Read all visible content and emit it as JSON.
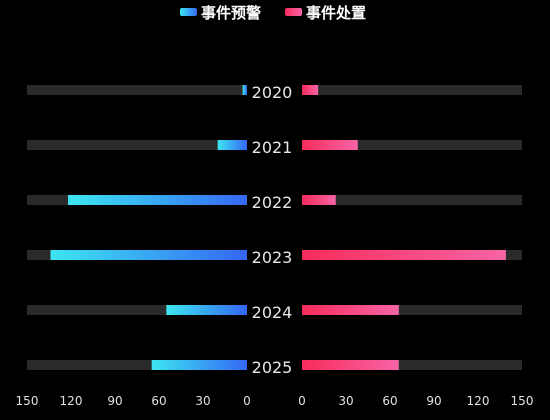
{
  "legend": {
    "warning_label": "事件预警",
    "disposal_label": "事件处置"
  },
  "colors": {
    "track": "#2a2a2a",
    "warning_gradient": [
      "#3467f5",
      "#3de6f0"
    ],
    "disposal_gradient": [
      "#f72c5b",
      "#f864a6"
    ],
    "legend_warning_gradient": [
      "#3de6f0",
      "#3467f5"
    ]
  },
  "chart_data": {
    "type": "bar",
    "orientation": "horizontal-butterfly",
    "categories": [
      "2020",
      "2021",
      "2022",
      "2023",
      "2024",
      "2025"
    ],
    "series": [
      {
        "name": "事件预警",
        "side": "left",
        "values": [
          3,
          20,
          122,
          134,
          55,
          65
        ]
      },
      {
        "name": "事件处置",
        "side": "right",
        "values": [
          11,
          38,
          23,
          139,
          66,
          66
        ]
      }
    ],
    "xlim": [
      0,
      150
    ],
    "left_ticks": [
      "150",
      "120",
      "90",
      "60",
      "30",
      "0"
    ],
    "right_ticks": [
      "0",
      "30",
      "60",
      "90",
      "120",
      "150"
    ],
    "grid": false,
    "legend_position": "top-center"
  }
}
